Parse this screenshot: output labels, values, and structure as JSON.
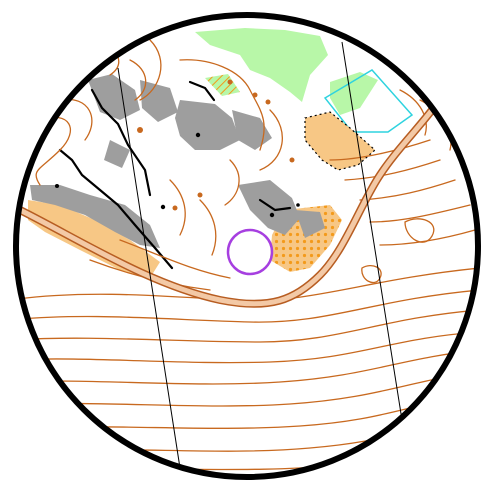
{
  "map": {
    "kind": "orienteering-map-excerpt",
    "frame_shape": "circle",
    "control_symbol": "control-circle",
    "colors": {
      "background": "#ffffff",
      "frame": "#000000",
      "contour": "#c8691f",
      "road_fill": "#f3c9a6",
      "road_edge": "#b75d22",
      "open_land": "#f7c785",
      "open_land_dots": "#f39a1b",
      "green": "#b8f7a8",
      "rock": "#9e9e9e",
      "water_edge": "#2fd3df",
      "control": "#a63fe0",
      "north_lines": "#000000"
    }
  }
}
